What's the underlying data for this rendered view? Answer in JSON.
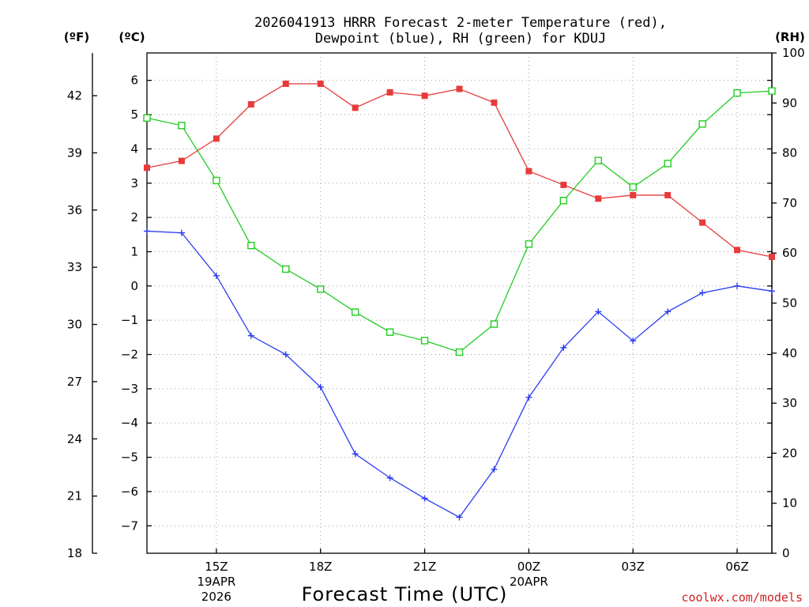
{
  "title_line1": "2026041913 HRRR Forecast 2-meter Temperature (red),",
  "title_line2": "Dewpoint (blue), RH (green) for KDUJ",
  "credit": "coolwx.com/models",
  "colors": {
    "temp": "#e83a3a",
    "dewpoint": "#2a3cf0",
    "rh": "#22cc22"
  },
  "chart_data": {
    "type": "line",
    "title": "2026041913 HRRR Forecast 2-meter Temperature (red), Dewpoint (blue), RH (green) for KDUJ",
    "xlabel": "Forecast Time (UTC)",
    "x_hours_utc_from_13Z_19APR": [
      13,
      14,
      15,
      16,
      17,
      18,
      19,
      20,
      21,
      22,
      23,
      24,
      25,
      26,
      27,
      28,
      29,
      30,
      31
    ],
    "xlim": [
      13,
      31
    ],
    "x_ticks": [
      {
        "hour": 15,
        "label": "15Z",
        "sub": [
          "19APR",
          "2026"
        ]
      },
      {
        "hour": 18,
        "label": "18Z",
        "sub": []
      },
      {
        "hour": 21,
        "label": "21Z",
        "sub": []
      },
      {
        "hour": 24,
        "label": "00Z",
        "sub": [
          "20APR"
        ]
      },
      {
        "hour": 27,
        "label": "03Z",
        "sub": []
      },
      {
        "hour": 30,
        "label": "06Z",
        "sub": []
      }
    ],
    "y_left_celsius": {
      "label": "(ºC)",
      "ylim": [
        -7.8,
        6.8
      ],
      "ticks": [
        6,
        5,
        4,
        3,
        2,
        1,
        0,
        -1,
        -2,
        -3,
        -4,
        -5,
        -6,
        -7
      ],
      "tick_labels": [
        "6",
        "5",
        "4",
        "3",
        "2",
        "1",
        "0",
        "−1",
        "−2",
        "−3",
        "−4",
        "−5",
        "−6",
        "−7"
      ]
    },
    "y_far_left_fahrenheit": {
      "label": "(ºF)",
      "ylim": [
        18,
        44.24
      ],
      "ticks": [
        18,
        21,
        24,
        27,
        30,
        33,
        36,
        39,
        42
      ],
      "tick_labels": [
        "18",
        "21",
        "24",
        "27",
        "30",
        "33",
        "36",
        "39",
        "42"
      ]
    },
    "y_right_rh": {
      "label": "(RH)",
      "ylim": [
        0,
        100
      ],
      "ticks": [
        0,
        10,
        20,
        30,
        40,
        50,
        60,
        70,
        80,
        90,
        100
      ],
      "tick_labels": [
        "0",
        "10",
        "20",
        "30",
        "40",
        "50",
        "60",
        "70",
        "80",
        "90",
        "100"
      ]
    },
    "series": [
      {
        "name": "2-meter Temperature",
        "axis": "celsius",
        "marker": "filled-square",
        "color": "#e83a3a",
        "values": [
          3.45,
          3.65,
          4.3,
          5.3,
          5.9,
          5.9,
          5.2,
          5.65,
          5.55,
          5.75,
          5.35,
          3.35,
          2.95,
          2.55,
          2.65,
          2.65,
          1.85,
          1.05,
          0.85
        ]
      },
      {
        "name": "Dewpoint",
        "axis": "celsius",
        "marker": "plus",
        "color": "#2a3cf0",
        "values": [
          1.6,
          1.55,
          0.3,
          -1.45,
          -2.0,
          -2.95,
          -4.9,
          -5.6,
          -6.2,
          -6.75,
          -5.35,
          -3.25,
          -1.8,
          -0.75,
          -1.6,
          -0.75,
          -0.2,
          0.0,
          -0.15
        ]
      },
      {
        "name": "Relative Humidity",
        "axis": "rh",
        "marker": "open-square",
        "color": "#22cc22",
        "values": [
          87,
          85.5,
          74.5,
          61.5,
          56.8,
          52.8,
          48.2,
          44.2,
          42.5,
          40.2,
          45.8,
          61.8,
          70.5,
          78.5,
          73.2,
          77.9,
          85.8,
          92,
          92.4
        ]
      }
    ]
  }
}
